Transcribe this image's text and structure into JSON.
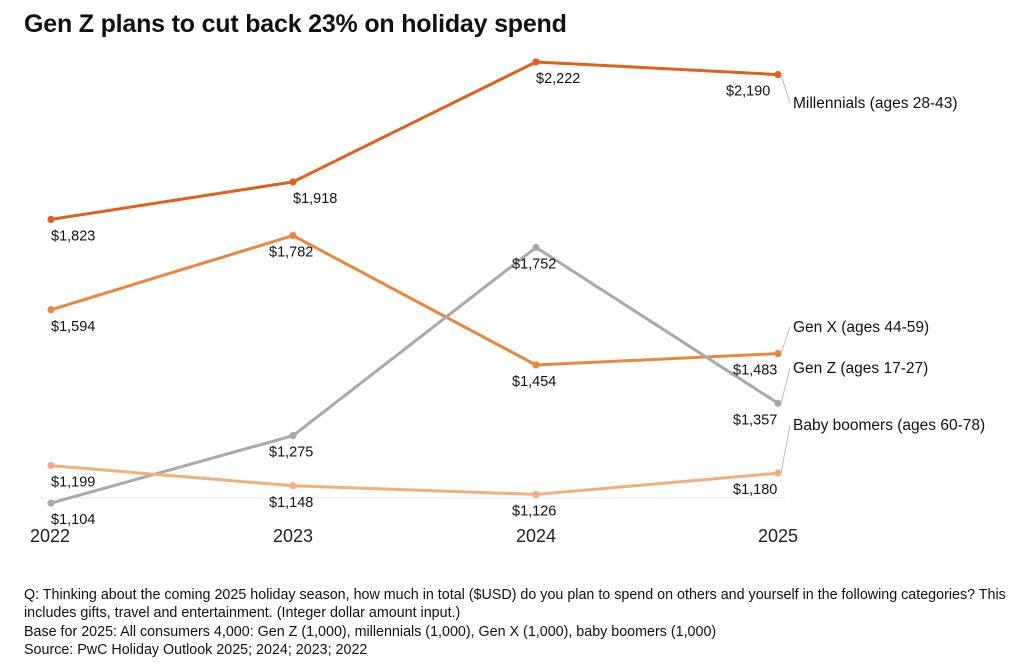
{
  "title": "Gen Z plans to cut back 23% on holiday spend",
  "chart_data": {
    "type": "line",
    "x": [
      "2022",
      "2023",
      "2024",
      "2025"
    ],
    "ylim": [
      1000,
      2300
    ],
    "grid": false,
    "series": [
      {
        "name": "Millennials (ages 28-43)",
        "values": [
          1823,
          1918,
          2222,
          2190
        ],
        "labels": [
          "$1,823",
          "$1,918",
          "$2,222",
          "$2,190"
        ],
        "color": "#e0601e"
      },
      {
        "name": "Gen X (ages 44-59)",
        "values": [
          1594,
          1782,
          1454,
          1483
        ],
        "labels": [
          "$1,594",
          "$1,782",
          "$1,454",
          "$1,483"
        ],
        "color": "#eb8540"
      },
      {
        "name": "Gen Z (ages 17-27)",
        "values": [
          1104,
          1275,
          1752,
          1357
        ],
        "labels": [
          "$1,104",
          "$1,275",
          "$1,752",
          "$1,357"
        ],
        "color": "#a9a9a9"
      },
      {
        "name": "Baby boomers (ages 60-78)",
        "values": [
          1199,
          1148,
          1126,
          1180
        ],
        "labels": [
          "$1,199",
          "$1,148",
          "$1,126",
          "$1,180"
        ],
        "color": "#f3ad7e"
      }
    ]
  },
  "notes": {
    "question": "Q: Thinking about the coming 2025 holiday season, how much in total ($USD) do you plan to spend on others and yourself in the following categories? This includes gifts, travel and entertainment. (Integer dollar amount input.)",
    "base": "Base for 2025: All consumers 4,000: Gen Z (1,000), millennials (1,000), Gen X (1,000), baby boomers (1,000)",
    "source": "Source: PwC Holiday Outlook 2025; 2024; 2023; 2022"
  }
}
